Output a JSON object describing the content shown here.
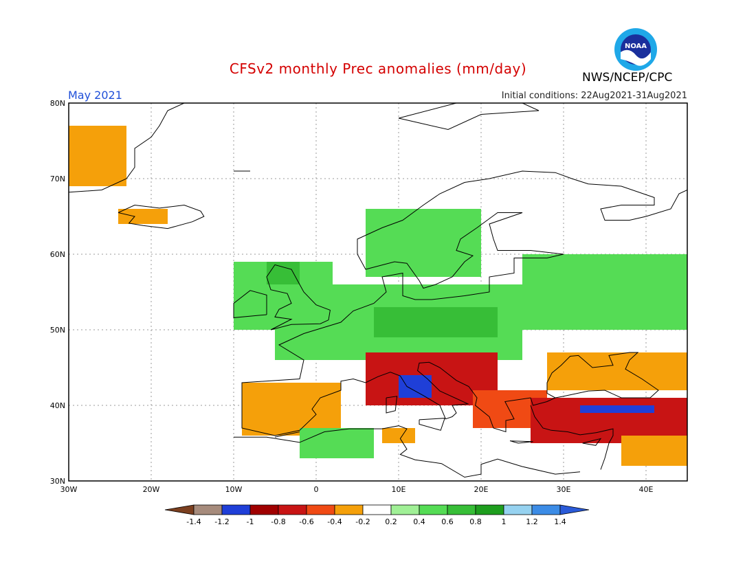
{
  "header": {
    "title": "CFSv2 monthly Prec anomalies (mm/day)",
    "month": "May 2021",
    "initial_conditions": "Initial conditions: 22Aug2021-31Aug2021",
    "agency": "NWS/NCEP/CPC",
    "logo_text": "NOAA"
  },
  "map": {
    "lon_range": [
      -30,
      45
    ],
    "lat_range": [
      30,
      80
    ],
    "lon_ticks": [
      "30W",
      "20W",
      "10W",
      "0",
      "10E",
      "20E",
      "30E",
      "40E"
    ],
    "lat_ticks": [
      "30N",
      "40N",
      "50N",
      "60N",
      "70N",
      "80N"
    ],
    "grid": "dotted",
    "anomaly_regions": [
      {
        "name": "Greenland coast",
        "lon": [
          -30,
          -23
        ],
        "lat": [
          69,
          77
        ],
        "value": -0.4
      },
      {
        "name": "Iceland",
        "lon": [
          -24,
          -18
        ],
        "lat": [
          64,
          66
        ],
        "value": -0.4
      },
      {
        "name": "Scandinavia",
        "lon": [
          6,
          20
        ],
        "lat": [
          57,
          66
        ],
        "value": 0.4
      },
      {
        "name": "British Isles",
        "lon": [
          -10,
          2
        ],
        "lat": [
          50,
          59
        ],
        "value": 0.4
      },
      {
        "name": "Scotland",
        "lon": [
          -6,
          -2
        ],
        "lat": [
          56,
          59
        ],
        "value": 0.6
      },
      {
        "name": "Central Europe",
        "lon": [
          -5,
          25
        ],
        "lat": [
          46,
          56
        ],
        "value": 0.4
      },
      {
        "name": "Germany-Poland core",
        "lon": [
          7,
          22
        ],
        "lat": [
          49,
          53
        ],
        "value": 0.6
      },
      {
        "name": "Western Russia",
        "lon": [
          25,
          45
        ],
        "lat": [
          50,
          60
        ],
        "value": 0.4
      },
      {
        "name": "Iberian Peninsula",
        "lon": [
          -9,
          3
        ],
        "lat": [
          36,
          43
        ],
        "value": -0.4
      },
      {
        "name": "Northern Italy-Balkans",
        "lon": [
          6,
          22
        ],
        "lat": [
          40,
          47
        ],
        "value": -0.8
      },
      {
        "name": "Central Italy",
        "lon": [
          10,
          14
        ],
        "lat": [
          41,
          44
        ],
        "value": -1.2
      },
      {
        "name": "Greece-Aegean",
        "lon": [
          19,
          28
        ],
        "lat": [
          37,
          42
        ],
        "value": -0.6
      },
      {
        "name": "Anatolia",
        "lon": [
          26,
          45
        ],
        "lat": [
          35,
          41
        ],
        "value": -0.8
      },
      {
        "name": "Central Anatolia",
        "lon": [
          32,
          41
        ],
        "lat": [
          39,
          40
        ],
        "value": -1.2
      },
      {
        "name": "Black Sea north",
        "lon": [
          28,
          45
        ],
        "lat": [
          42,
          47
        ],
        "value": -0.4
      },
      {
        "name": "North Africa",
        "lon": [
          -2,
          7
        ],
        "lat": [
          33,
          37
        ],
        "value": 0.4
      },
      {
        "name": "Tunisia",
        "lon": [
          8,
          12
        ],
        "lat": [
          35,
          37
        ],
        "value": -0.4
      },
      {
        "name": "Middle East",
        "lon": [
          37,
          45
        ],
        "lat": [
          32,
          36
        ],
        "value": -0.4
      }
    ]
  },
  "legend": {
    "labels": [
      "-1.4",
      "-1.2",
      "-1",
      "-0.8",
      "-0.6",
      "-0.4",
      "-0.2",
      "0.2",
      "0.4",
      "0.6",
      "0.8",
      "1",
      "1.2",
      "1.4"
    ],
    "colors": [
      "#7b3f1f",
      "#a68b7c",
      "#1f3fd8",
      "#a00000",
      "#c81414",
      "#f04a14",
      "#f5a00a",
      "#ffffff",
      "#a0f096",
      "#55dc55",
      "#37be37",
      "#1e9e1e",
      "#96d2f0",
      "#3c8ce6",
      "#2a5ad8"
    ]
  }
}
